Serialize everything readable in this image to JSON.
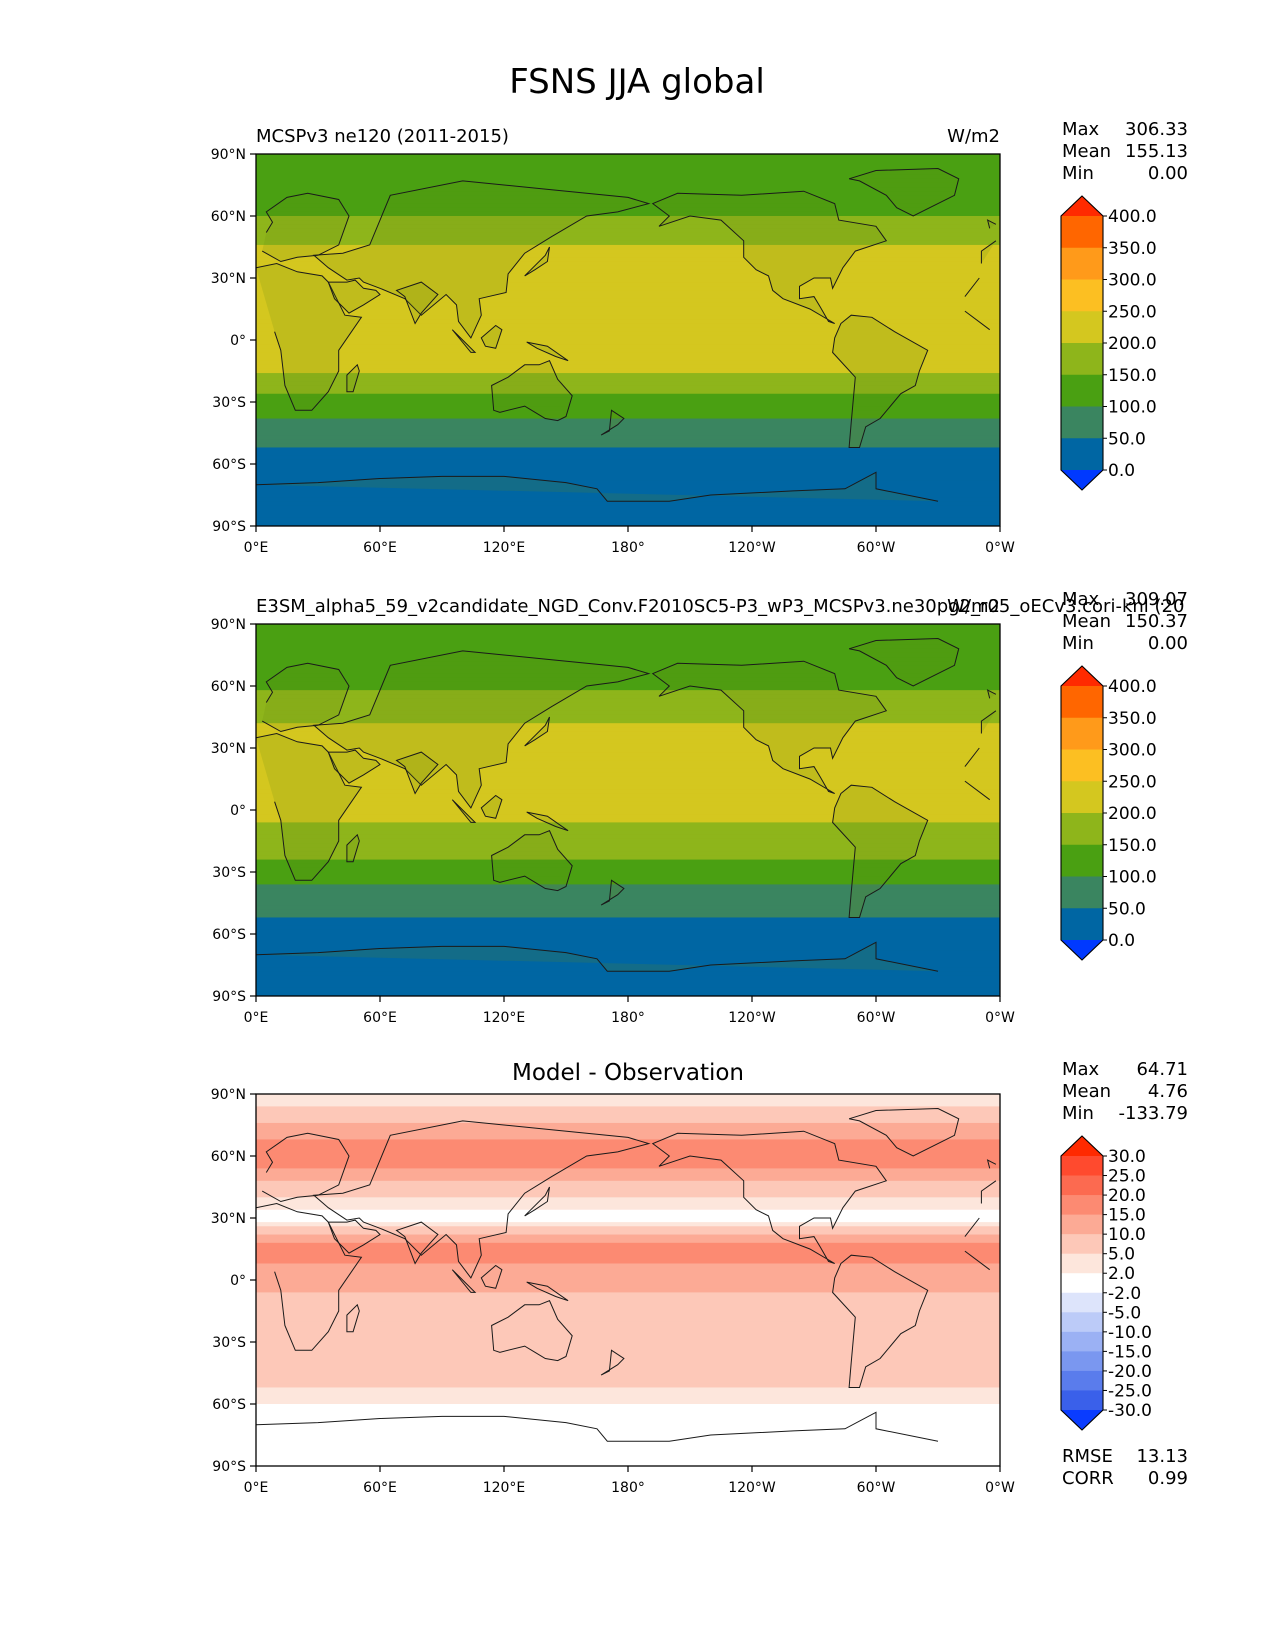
{
  "chart_data": {
    "type": "heatmap",
    "title": "FSNS JJA global",
    "longitude_ticks": [
      "0°E",
      "60°E",
      "120°E",
      "180°",
      "120°W",
      "60°W",
      "0°W"
    ],
    "latitude_ticks": [
      "90°N",
      "60°N",
      "30°N",
      "0°",
      "30°S",
      "60°S",
      "90°S"
    ],
    "panels": [
      {
        "name": "test",
        "left_title": "MCSPv3 ne120 (2011-2015)",
        "center_title": "",
        "units": "W/m2",
        "stats": [
          {
            "label": "Max",
            "value": "306.33"
          },
          {
            "label": "Mean",
            "value": "155.13"
          },
          {
            "label": "Min",
            "value": "0.00"
          }
        ],
        "colorbar_levels": [
          "400.0",
          "350.0",
          "300.0",
          "250.0",
          "200.0",
          "150.0",
          "100.0",
          "50.0",
          "0.0"
        ],
        "colorbar_colors": [
          "#ff2a00",
          "#ff6600",
          "#ff9a1a",
          "#fcbf22",
          "#d4c71f",
          "#8eb51b",
          "#4aa012",
          "#3a8560",
          "#0066a3",
          "#0039ff"
        ],
        "zonal_mean_w_m2": [
          [
            90,
            100
          ],
          [
            75,
            120
          ],
          [
            60,
            150
          ],
          [
            45,
            200
          ],
          [
            30,
            235
          ],
          [
            15,
            225
          ],
          [
            0,
            215
          ],
          [
            -15,
            200
          ],
          [
            -30,
            135
          ],
          [
            -45,
            70
          ],
          [
            -60,
            30
          ],
          [
            -75,
            15
          ],
          [
            -90,
            0
          ]
        ]
      },
      {
        "name": "reference",
        "left_title": "E3SM_alpha5_59_v2candidate_NGD_Conv.F2010SC5-P3_wP3_MCSPv3.ne30pg2_r05_oECv3.cori-knl (20",
        "center_title": "",
        "units": "W/m2",
        "stats": [
          {
            "label": "Max",
            "value": "309.07"
          },
          {
            "label": "Mean",
            "value": "150.37"
          },
          {
            "label": "Min",
            "value": "0.00"
          }
        ],
        "colorbar_levels": [
          "400.0",
          "350.0",
          "300.0",
          "250.0",
          "200.0",
          "150.0",
          "100.0",
          "50.0",
          "0.0"
        ],
        "colorbar_colors": [
          "#ff2a00",
          "#ff6600",
          "#ff9a1a",
          "#fcbf22",
          "#d4c71f",
          "#8eb51b",
          "#4aa012",
          "#3a8560",
          "#0066a3",
          "#0039ff"
        ],
        "zonal_mean_w_m2": [
          [
            90,
            100
          ],
          [
            75,
            115
          ],
          [
            60,
            145
          ],
          [
            45,
            195
          ],
          [
            30,
            228
          ],
          [
            15,
            218
          ],
          [
            0,
            205
          ],
          [
            -15,
            190
          ],
          [
            -30,
            125
          ],
          [
            -45,
            65
          ],
          [
            -60,
            28
          ],
          [
            -75,
            14
          ],
          [
            -90,
            0
          ]
        ]
      },
      {
        "name": "difference",
        "left_title": "",
        "center_title": "Model - Observation",
        "units": "",
        "stats": [
          {
            "label": "Max",
            "value": "64.71"
          },
          {
            "label": "Mean",
            "value": "4.76"
          },
          {
            "label": "Min",
            "value": "-133.79"
          }
        ],
        "colorbar_levels": [
          "30.0",
          "25.0",
          "20.0",
          "15.0",
          "10.0",
          "5.0",
          "2.0",
          "-2.0",
          "-5.0",
          "-10.0",
          "-15.0",
          "-20.0",
          "-25.0",
          "-30.0"
        ],
        "colorbar_colors": [
          "#ff2a00",
          "#ff4a2e",
          "#fc6a50",
          "#fc8a72",
          "#fcaa95",
          "#fdc8b8",
          "#fde6dc",
          "#ffffff",
          "#dde4fb",
          "#bccbf8",
          "#9bb1f4",
          "#7a97f0",
          "#5a7cec",
          "#3a60ea",
          "#0a3cff"
        ],
        "zonal_mean_w_m2": [
          [
            90,
            2
          ],
          [
            75,
            10
          ],
          [
            60,
            20
          ],
          [
            45,
            8
          ],
          [
            30,
            0
          ],
          [
            15,
            18
          ],
          [
            0,
            12
          ],
          [
            -15,
            6
          ],
          [
            -30,
            10
          ],
          [
            -45,
            8
          ],
          [
            -60,
            2
          ],
          [
            -75,
            0
          ],
          [
            -90,
            0
          ]
        ]
      }
    ],
    "footer_stats": [
      {
        "label": "RMSE",
        "value": "13.13"
      },
      {
        "label": "CORR",
        "value": "0.99"
      }
    ]
  }
}
